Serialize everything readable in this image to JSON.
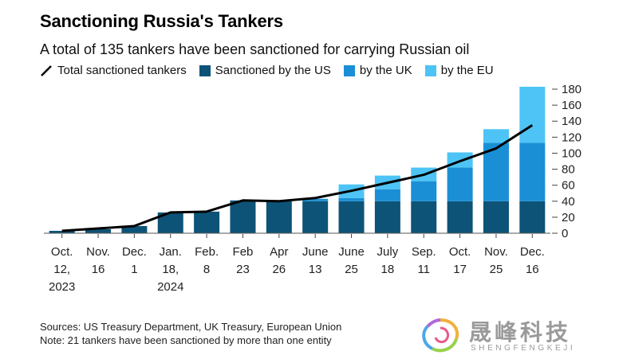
{
  "header": {
    "title": "Sanctioning Russia's Tankers",
    "subtitle": "A total of 135 tankers have been sanctioned for carrying Russian oil"
  },
  "legend": {
    "total": "Total sanctioned tankers",
    "us": "Sanctioned by the US",
    "uk": "by the UK",
    "eu": "by the EU"
  },
  "colors": {
    "us": "#0d5377",
    "uk": "#1a8fd6",
    "eu": "#4dc4f5",
    "total": "#000000"
  },
  "footer": {
    "sources": "Sources: US Treasury Department, UK Treasury, European Union",
    "note": "Note: 21 tankers have been sanctioned by more than one entity"
  },
  "watermark": {
    "cn": "晟峰科技",
    "en": "SHENGFENGKEJI"
  },
  "chart_data": {
    "type": "bar",
    "stacked": true,
    "categories": [
      [
        "Oct.",
        "12,",
        "2023"
      ],
      [
        "Nov.",
        "16"
      ],
      [
        "Dec.",
        "1"
      ],
      [
        "Jan.",
        "18,",
        "2024"
      ],
      [
        "Feb.",
        "8"
      ],
      [
        "Feb",
        "23"
      ],
      [
        "Apr",
        "26"
      ],
      [
        "June",
        "13"
      ],
      [
        "June",
        "25"
      ],
      [
        "July",
        "18"
      ],
      [
        "Sep.",
        "11"
      ],
      [
        "Oct.",
        "17"
      ],
      [
        "Nov.",
        "25"
      ],
      [
        "Dec.",
        "16"
      ]
    ],
    "series": [
      {
        "name": "Sanctioned by the US",
        "values": [
          3,
          5,
          9,
          26,
          27,
          41,
          40,
          40,
          40,
          40,
          40,
          40,
          40,
          40
        ]
      },
      {
        "name": "by the UK",
        "values": [
          0,
          0,
          0,
          0,
          0,
          0,
          0,
          3,
          4,
          15,
          25,
          42,
          73,
          73
        ]
      },
      {
        "name": "by the EU",
        "values": [
          0,
          0,
          0,
          0,
          0,
          0,
          0,
          0,
          17,
          17,
          17,
          19,
          17,
          70
        ]
      }
    ],
    "line": {
      "name": "Total sanctioned tankers",
      "values": [
        3,
        6,
        9,
        26,
        27,
        41,
        40,
        44,
        53,
        63,
        73,
        90,
        106,
        135
      ]
    },
    "ylim": [
      0,
      180
    ],
    "yticks": [
      0,
      20,
      40,
      60,
      80,
      100,
      120,
      140,
      160,
      180
    ],
    "y_axis_position": "right",
    "grid": false,
    "legend_position": "top-left"
  }
}
